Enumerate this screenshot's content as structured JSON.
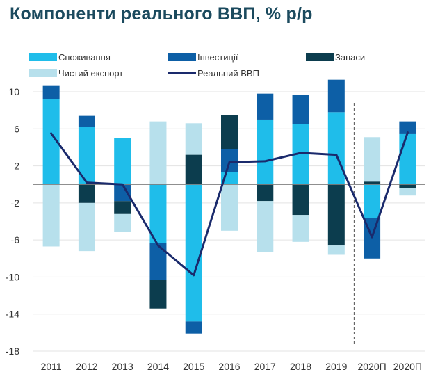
{
  "chart_data": {
    "type": "bar",
    "stacked": true,
    "title": "Компоненти реального ВВП, % р/р",
    "xlabel": "",
    "ylabel": "",
    "categories": [
      "2011",
      "2012",
      "2013",
      "2014",
      "2015",
      "2016",
      "2017",
      "2018",
      "2019",
      "2020П",
      "2020П"
    ],
    "ylim": [
      -18,
      10
    ],
    "yticks": [
      "10",
      "6",
      "2",
      "-2",
      "-6",
      "-10",
      "-14",
      "-18"
    ],
    "grid": true,
    "legend_position": "top",
    "forecast_separator_after": "2019",
    "series": [
      {
        "name": "Споживання",
        "type": "bar",
        "color": "#1fbdea",
        "values": [
          9.2,
          6.2,
          5.0,
          -6.3,
          -14.8,
          1.3,
          7.0,
          6.5,
          7.8,
          -3.6,
          5.5
        ]
      },
      {
        "name": "Інвестиції",
        "type": "bar",
        "color": "#0d5fa6",
        "values": [
          1.5,
          1.2,
          -1.8,
          -4.0,
          -1.3,
          2.5,
          2.8,
          3.2,
          3.5,
          -4.4,
          1.3
        ]
      },
      {
        "name": "Запаси",
        "type": "bar",
        "color": "#0c3d4e",
        "values": [
          0,
          -2.0,
          -1.4,
          -3.1,
          3.2,
          3.7,
          -1.8,
          -3.3,
          -6.6,
          0.3,
          -0.4
        ]
      },
      {
        "name": "Чистий експорт",
        "type": "bar",
        "color": "#b7e0ec",
        "values": [
          -6.7,
          -5.2,
          -1.9,
          6.8,
          3.4,
          -5.0,
          -5.5,
          -2.9,
          -1.0,
          4.8,
          -0.8
        ]
      },
      {
        "name": "Реальний ВВП",
        "type": "line",
        "color": "#1a2a6c",
        "values": [
          5.5,
          0.2,
          0.0,
          -6.6,
          -9.8,
          2.4,
          2.5,
          3.4,
          3.2,
          -5.7,
          5.6
        ]
      }
    ]
  }
}
